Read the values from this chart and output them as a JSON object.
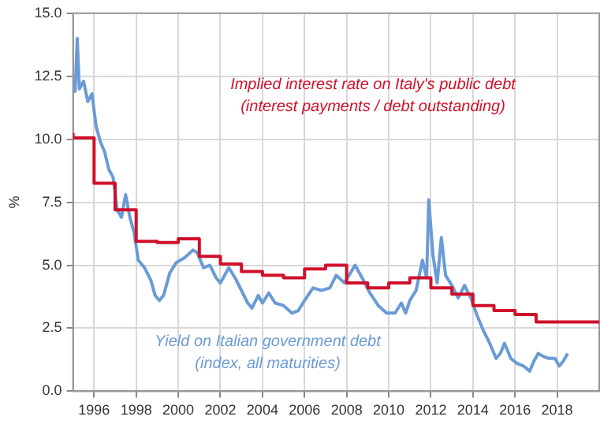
{
  "chart_data": {
    "type": "line",
    "ylabel": "%",
    "xlim": [
      1995,
      2020
    ],
    "xticks": [
      1996,
      1998,
      2000,
      2002,
      2004,
      2006,
      2008,
      2010,
      2012,
      2014,
      2016,
      2018
    ],
    "ylim": [
      0,
      15
    ],
    "yticks": [
      {
        "value": 0,
        "label": "0.0"
      },
      {
        "value": 2.5,
        "label": "2.5"
      },
      {
        "value": 5,
        "label": "5.0"
      },
      {
        "value": 7.5,
        "label": "7.5"
      },
      {
        "value": 10,
        "label": "10.0"
      },
      {
        "value": 12.5,
        "label": "12.5"
      },
      {
        "value": 15,
        "label": "15.0"
      }
    ],
    "grid": true,
    "legend": false,
    "series": [
      {
        "name": "Implied interest rate on Italy's public debt",
        "type": "step",
        "color": "#d0102a",
        "x": [
          1995,
          1996,
          1997,
          1998,
          1999,
          2000,
          2001,
          2002,
          2003,
          2004,
          2005,
          2006,
          2007,
          2008,
          2009,
          2010,
          2011,
          2012,
          2013,
          2014,
          2015,
          2016,
          2017,
          2018,
          2020
        ],
        "values": [
          10.25,
          10.05,
          8.25,
          7.2,
          5.95,
          5.9,
          6.05,
          5.35,
          5.05,
          4.75,
          4.6,
          4.5,
          4.85,
          5.0,
          4.3,
          4.1,
          4.3,
          4.5,
          4.1,
          3.85,
          3.4,
          3.2,
          3.05,
          2.75,
          2.75
        ]
      },
      {
        "name": "Yield on Italian government debt",
        "type": "line",
        "color": "#6b9bd6",
        "x": [
          1995.0,
          1995.1,
          1995.2,
          1995.3,
          1995.5,
          1995.7,
          1995.9,
          1996.1,
          1996.3,
          1996.5,
          1996.7,
          1996.9,
          1997.1,
          1997.3,
          1997.5,
          1997.7,
          1997.9,
          1998.1,
          1998.4,
          1998.7,
          1998.9,
          1999.1,
          1999.3,
          1999.6,
          1999.9,
          2000.3,
          2000.7,
          2000.9,
          2001.2,
          2001.5,
          2001.8,
          2002.0,
          2002.4,
          2002.7,
          2003.0,
          2003.3,
          2003.5,
          2003.8,
          2004.0,
          2004.3,
          2004.6,
          2005.0,
          2005.4,
          2005.7,
          2006.0,
          2006.4,
          2006.8,
          2007.2,
          2007.5,
          2007.9,
          2008.4,
          2008.8,
          2009.1,
          2009.5,
          2009.9,
          2010.3,
          2010.6,
          2010.8,
          2011.0,
          2011.3,
          2011.6,
          2011.8,
          2011.9,
          2012.1,
          2012.3,
          2012.5,
          2012.7,
          2013.0,
          2013.3,
          2013.6,
          2013.9,
          2014.2,
          2014.5,
          2014.8,
          2015.1,
          2015.3,
          2015.5,
          2015.8,
          2016.1,
          2016.4,
          2016.7,
          2016.9,
          2017.1,
          2017.3,
          2017.6,
          2017.9,
          2018.1,
          2018.3,
          2018.5
        ],
        "values": [
          12.3,
          11.9,
          14.0,
          12.0,
          12.3,
          11.5,
          11.8,
          10.5,
          9.9,
          9.5,
          8.8,
          8.5,
          7.2,
          6.9,
          7.8,
          6.9,
          6.3,
          5.2,
          4.9,
          4.4,
          3.8,
          3.6,
          3.8,
          4.7,
          5.1,
          5.3,
          5.6,
          5.5,
          4.9,
          5.0,
          4.5,
          4.3,
          4.9,
          4.5,
          4.0,
          3.5,
          3.3,
          3.8,
          3.5,
          3.9,
          3.5,
          3.4,
          3.1,
          3.2,
          3.6,
          4.1,
          4.0,
          4.1,
          4.6,
          4.3,
          5.0,
          4.4,
          3.9,
          3.4,
          3.1,
          3.1,
          3.5,
          3.1,
          3.6,
          4.0,
          5.2,
          4.5,
          7.6,
          5.4,
          4.3,
          6.1,
          4.6,
          4.2,
          3.7,
          4.2,
          3.7,
          3.0,
          2.4,
          1.9,
          1.3,
          1.5,
          1.9,
          1.3,
          1.1,
          1.0,
          0.8,
          1.2,
          1.5,
          1.4,
          1.3,
          1.3,
          1.0,
          1.2,
          1.5
        ]
      }
    ],
    "annotations": [
      "(interest payments / debt outstanding)",
      "(index, all maturities)"
    ]
  }
}
